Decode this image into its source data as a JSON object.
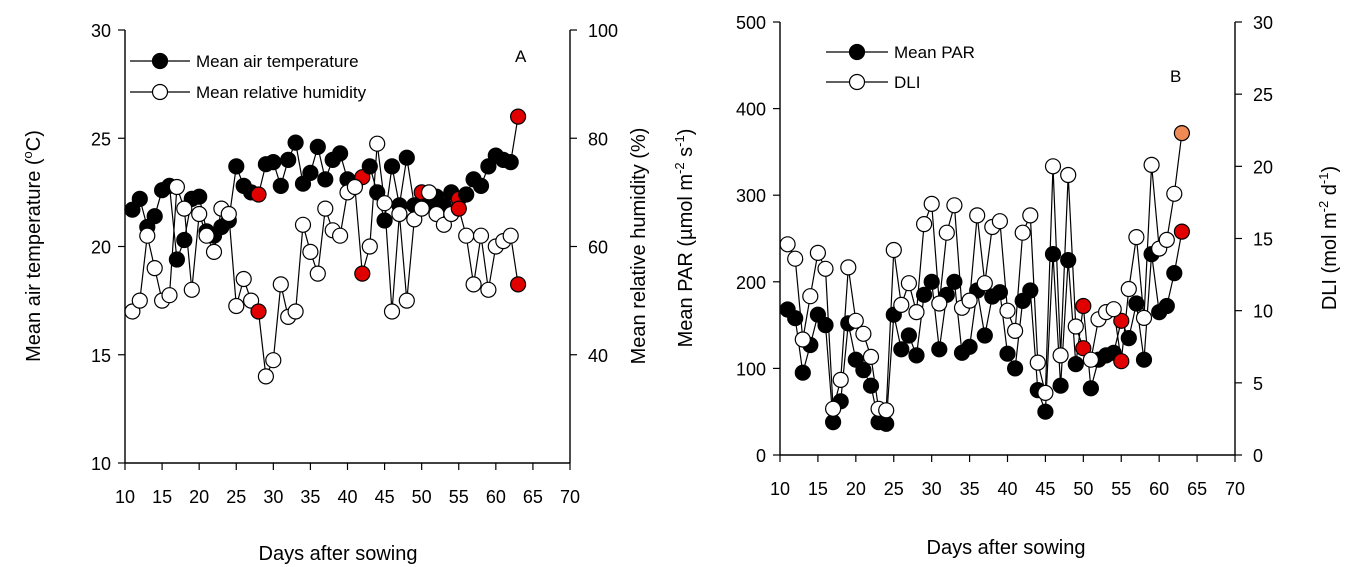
{
  "figure_colors": {
    "filled": "#000000",
    "open": "#ffffff",
    "highlight_red": "#e00000",
    "highlight_orange": "#f08a55"
  },
  "chart_data": [
    {
      "type": "scatter",
      "panel_label": "A",
      "xlabel": "Days after sowing",
      "ylabel_left": "Mean air temperature (°C)",
      "ylabel_right": "Mean relative humidity (%)",
      "xlim": [
        10,
        70
      ],
      "ylim_left": [
        10,
        30
      ],
      "ylim_right": [
        20,
        100
      ],
      "xticks": [
        "10",
        "15",
        "20",
        "25",
        "30",
        "35",
        "40",
        "45",
        "50",
        "55",
        "60",
        "65",
        "70"
      ],
      "yticks_left": [
        "10",
        "15",
        "20",
        "25",
        "30"
      ],
      "yticks_right": [
        "40",
        "60",
        "80",
        "100"
      ],
      "legend": [
        "Mean air temperature",
        "Mean relative humidity"
      ],
      "legend_position": "top-left",
      "series": [
        {
          "name": "Mean air temperature",
          "axis": "left",
          "marker": "filled",
          "x": [
            11,
            12,
            13,
            14,
            15,
            16,
            17,
            18,
            19,
            20,
            21,
            22,
            23,
            24,
            25,
            26,
            27,
            28,
            29,
            30,
            31,
            32,
            33,
            34,
            35,
            36,
            37,
            38,
            39,
            40,
            41,
            42,
            43,
            44,
            45,
            46,
            47,
            48,
            49,
            50,
            51,
            52,
            53,
            54,
            55,
            56,
            57,
            58,
            59,
            60,
            61,
            62,
            63
          ],
          "y": [
            21.7,
            22.2,
            20.9,
            21.4,
            22.6,
            22.8,
            19.4,
            20.3,
            22.2,
            22.3,
            20.7,
            20.5,
            20.9,
            21.2,
            23.7,
            22.8,
            22.5,
            22.4,
            23.8,
            23.9,
            22.8,
            24.0,
            24.8,
            22.9,
            23.4,
            24.6,
            23.1,
            24.0,
            24.3,
            23.1,
            22.9,
            23.2,
            23.7,
            22.5,
            21.2,
            23.7,
            21.9,
            24.1,
            21.9,
            22.5,
            22.0,
            22.3,
            21.9,
            22.5,
            22.2,
            22.4,
            23.1,
            22.8,
            23.7,
            24.2,
            24.0,
            23.9,
            26.0
          ],
          "highlight_red_x": [
            28,
            42,
            50,
            55,
            63
          ]
        },
        {
          "name": "Mean relative humidity",
          "axis": "right",
          "marker": "open",
          "x": [
            11,
            12,
            13,
            14,
            15,
            16,
            17,
            18,
            19,
            20,
            21,
            22,
            23,
            24,
            25,
            26,
            27,
            28,
            29,
            30,
            31,
            32,
            33,
            34,
            35,
            36,
            37,
            38,
            39,
            40,
            41,
            42,
            43,
            44,
            45,
            46,
            47,
            48,
            49,
            50,
            51,
            52,
            53,
            54,
            55,
            56,
            57,
            58,
            59,
            60,
            61,
            62,
            63
          ],
          "y": [
            48,
            50,
            62,
            56,
            50,
            51,
            71,
            67,
            52,
            66,
            62,
            59,
            67,
            66,
            49,
            54,
            50,
            48,
            36,
            39,
            53,
            47,
            48,
            64,
            59,
            55,
            67,
            63,
            62,
            70,
            71,
            55,
            60,
            79,
            68,
            48,
            66,
            50,
            65,
            67,
            70,
            66,
            64,
            66,
            67,
            62,
            53,
            62,
            52,
            60,
            61,
            62,
            53
          ],
          "highlight_red_x": [
            28,
            42,
            55,
            63
          ]
        }
      ]
    },
    {
      "type": "scatter",
      "panel_label": "B",
      "xlabel": "Days after sowing",
      "ylabel_left": "Mean PAR (µmol m⁻² s⁻¹)",
      "ylabel_right": "DLI (mol m⁻² d⁻¹)",
      "xlim": [
        10,
        70
      ],
      "ylim_left": [
        0,
        500
      ],
      "ylim_right": [
        0,
        30
      ],
      "xticks": [
        "10",
        "15",
        "20",
        "25",
        "30",
        "35",
        "40",
        "45",
        "50",
        "55",
        "60",
        "65",
        "70"
      ],
      "yticks_left": [
        "0",
        "100",
        "200",
        "300",
        "400",
        "500"
      ],
      "yticks_right": [
        "0",
        "5",
        "10",
        "15",
        "20",
        "25",
        "30"
      ],
      "legend": [
        "Mean PAR",
        "DLI"
      ],
      "legend_position": "top-left",
      "series": [
        {
          "name": "Mean PAR",
          "axis": "left",
          "marker": "filled",
          "x": [
            11,
            12,
            13,
            14,
            15,
            16,
            17,
            18,
            19,
            20,
            21,
            22,
            23,
            24,
            25,
            26,
            27,
            28,
            29,
            30,
            31,
            32,
            33,
            34,
            35,
            36,
            37,
            38,
            39,
            40,
            41,
            42,
            43,
            44,
            45,
            46,
            47,
            48,
            49,
            50,
            51,
            52,
            53,
            54,
            55,
            56,
            57,
            58,
            59,
            60,
            61,
            62,
            63
          ],
          "y": [
            168,
            158,
            95,
            127,
            162,
            150,
            38,
            62,
            152,
            110,
            98,
            80,
            38,
            36,
            162,
            122,
            138,
            115,
            185,
            200,
            122,
            185,
            200,
            118,
            125,
            190,
            138,
            183,
            188,
            117,
            100,
            178,
            190,
            75,
            50,
            232,
            80,
            225,
            105,
            172,
            77,
            110,
            115,
            118,
            155,
            135,
            175,
            110,
            232,
            165,
            172,
            210,
            258
          ],
          "highlight_red_x": [
            50,
            55,
            63
          ]
        },
        {
          "name": "DLI",
          "axis": "right",
          "marker": "open",
          "x": [
            11,
            12,
            13,
            14,
            15,
            16,
            17,
            18,
            19,
            20,
            21,
            22,
            23,
            24,
            25,
            26,
            27,
            28,
            29,
            30,
            31,
            32,
            33,
            34,
            35,
            36,
            37,
            38,
            39,
            40,
            41,
            42,
            43,
            44,
            45,
            46,
            47,
            48,
            49,
            50,
            51,
            52,
            53,
            54,
            55,
            56,
            57,
            58,
            59,
            60,
            61,
            62,
            63
          ],
          "y": [
            14.6,
            13.6,
            8.0,
            11.0,
            14.0,
            12.9,
            3.2,
            5.2,
            13.0,
            9.3,
            8.4,
            6.8,
            3.2,
            3.1,
            14.2,
            10.4,
            11.9,
            9.9,
            16.0,
            17.4,
            10.5,
            15.4,
            17.3,
            10.2,
            10.7,
            16.6,
            11.9,
            15.8,
            16.2,
            10.0,
            8.6,
            15.4,
            16.6,
            6.4,
            4.3,
            20.0,
            6.9,
            19.4,
            8.9,
            7.4,
            6.6,
            9.4,
            9.9,
            10.1,
            6.5,
            11.5,
            15.1,
            9.5,
            20.1,
            14.3,
            14.9,
            18.1,
            22.3
          ],
          "highlight_red_x": [
            50,
            55
          ],
          "highlight_orange_x": [
            63
          ]
        }
      ]
    }
  ]
}
